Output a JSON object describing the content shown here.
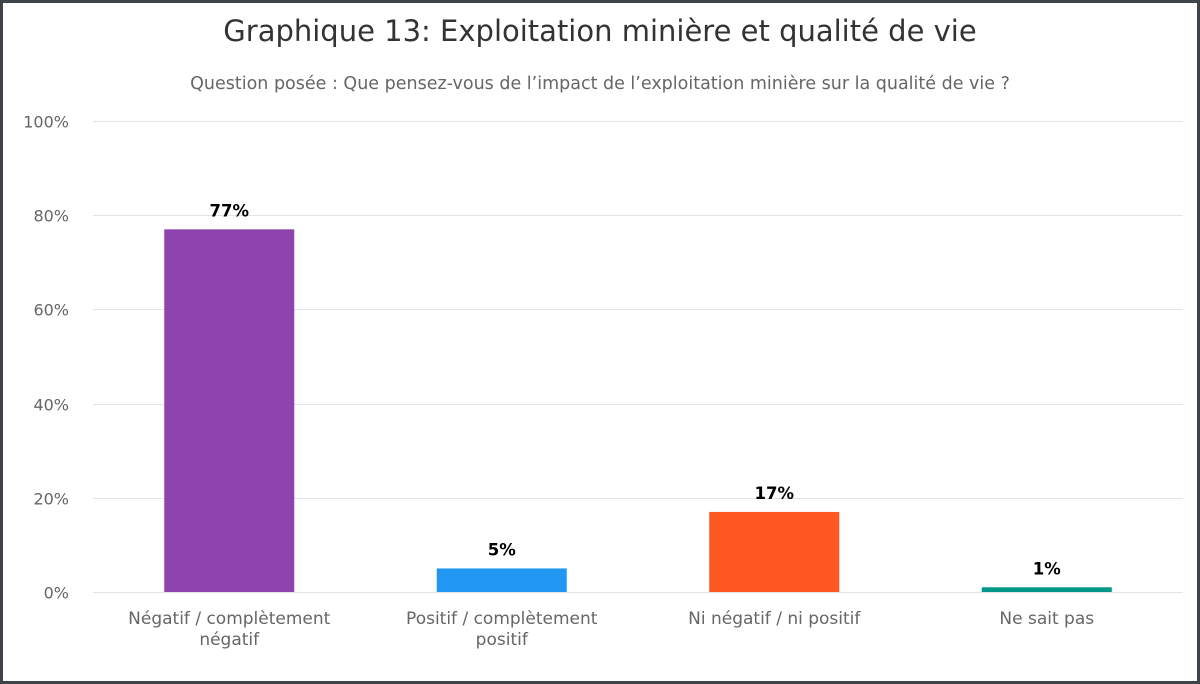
{
  "chart_data": {
    "type": "bar",
    "title": "Graphique 13: Exploitation minière et qualité de vie",
    "subtitle": "Question posée : Que pensez-vous de l’impact de l’exploitation minière sur la qualité de vie ?",
    "xlabel": "",
    "ylabel": "",
    "ylim": [
      0,
      100
    ],
    "yticks": [
      0,
      20,
      40,
      60,
      80,
      100
    ],
    "ytick_labels": [
      "0%",
      "20%",
      "40%",
      "60%",
      "80%",
      "100%"
    ],
    "grid": true,
    "legend": "none",
    "categories": [
      [
        "Négatif / complètement",
        "négatif"
      ],
      [
        "Positif / complètement",
        "positif"
      ],
      [
        "Ni négatif / ni positif"
      ],
      [
        "Ne sait pas"
      ]
    ],
    "values": [
      77,
      5,
      17,
      1
    ],
    "data_labels": [
      "77%",
      "5%",
      "17%",
      "1%"
    ],
    "colors": [
      "#8e44ad",
      "#2196f3",
      "#ff5722",
      "#009688"
    ]
  }
}
